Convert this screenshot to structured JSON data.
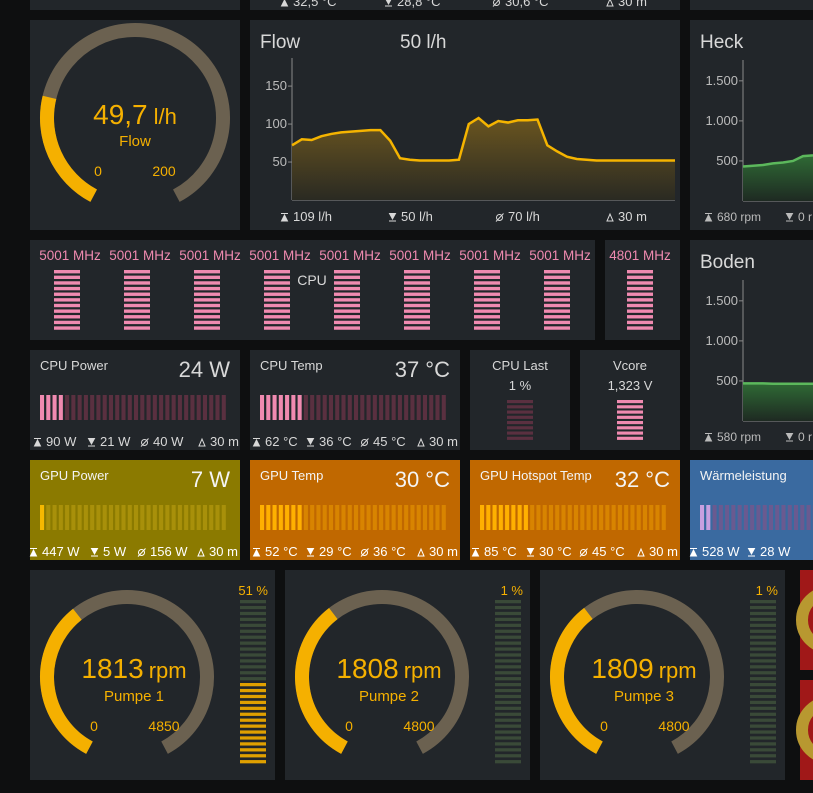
{
  "top_strip": {
    "stats": [
      "32,5 °C",
      "28,8 °C",
      "30,6 °C",
      "30 m"
    ]
  },
  "flow_gauge": {
    "value": {
      "value": 49.7,
      "label": "49,7"
    },
    "unit": "l/h",
    "label": "Flow",
    "min": 0,
    "max": 200
  },
  "flow_chart": {
    "type": "line",
    "title": "Flow",
    "current": "50 l/h",
    "color": "#f5b400",
    "values": [
      72,
      80,
      79,
      84,
      87,
      89,
      90,
      91,
      92,
      92,
      78,
      55,
      53,
      52,
      52,
      52,
      52,
      53,
      100,
      108,
      97,
      104,
      102,
      105,
      105,
      106,
      72,
      64,
      57,
      54,
      53,
      52,
      52,
      52,
      52,
      52,
      52,
      52,
      52,
      52
    ],
    "ylim": [
      0,
      187
    ],
    "yticks": [
      50,
      100,
      150
    ],
    "stats": [
      "109 l/h",
      "50 l/h",
      "70 l/h",
      "30 m"
    ]
  },
  "heck_chart": {
    "type": "area",
    "title": "Heck",
    "color": "#5cb85c",
    "values": [
      430,
      440,
      450,
      470,
      480,
      500,
      560,
      570
    ],
    "ylim": [
      0,
      1760
    ],
    "yticks": [
      500,
      {
        "value": 1000,
        "label": "1.000"
      },
      {
        "value": 1500,
        "label": "1.500"
      }
    ],
    "stats": [
      "680 rpm",
      "0 r"
    ]
  },
  "boden_chart": {
    "type": "area",
    "title": "Boden",
    "color": "#5cb85c",
    "values": [
      470,
      470,
      470,
      465,
      465,
      465,
      465,
      465
    ],
    "ylim": [
      0,
      1760
    ],
    "yticks": [
      500,
      {
        "value": 1000,
        "label": "1.000"
      },
      {
        "value": 1500,
        "label": "1.500"
      }
    ],
    "stats": [
      "580 rpm",
      "0 r"
    ]
  },
  "cpu_clocks": {
    "label": "CPU",
    "cores": [
      "5001 MHz",
      "5001 MHz",
      "5001 MHz",
      "5001 MHz",
      "5001 MHz",
      "5001 MHz",
      "5001 MHz",
      "5001 MHz"
    ],
    "extra": "4801 MHz"
  },
  "sensors": [
    {
      "title": "CPU Power",
      "value": "24 W",
      "stats": [
        "90 W",
        "21 W",
        "40 W",
        "30 m"
      ]
    },
    {
      "title": "CPU Temp",
      "value": "37 °C",
      "stats": [
        "62 °C",
        "36 °C",
        "45 °C",
        "30 m"
      ]
    },
    {
      "title": "GPU Power",
      "value": "7 W",
      "stats": [
        "447 W",
        "5 W",
        "156 W",
        "30 m"
      ]
    },
    {
      "title": "GPU Temp",
      "value": "30 °C",
      "stats": [
        "52 °C",
        "29 °C",
        "36 °C",
        "30 m"
      ]
    },
    {
      "title": "GPU Hotspot Temp",
      "value": "32 °C",
      "stats": [
        "85 °C",
        "30 °C",
        "45 °C",
        "30 m"
      ]
    },
    {
      "title": "Wärmeleistung",
      "stats": [
        "528 W",
        "28 W"
      ]
    }
  ],
  "cpu_last": {
    "title": "CPU Last",
    "value": {
      "value": 1,
      "label": "1 %"
    }
  },
  "vcore": {
    "title": "Vcore",
    "value": "1,323 V"
  },
  "pumps": [
    {
      "value": 1813,
      "unit": "rpm",
      "label": "Pumpe 1",
      "min": 0,
      "max": 4850,
      "percent": {
        "value": 51,
        "label": "51 %"
      }
    },
    {
      "value": 1808,
      "unit": "rpm",
      "label": "Pumpe 2",
      "min": 0,
      "max": 4800,
      "percent": {
        "value": 1,
        "label": "1 %"
      }
    },
    {
      "value": 1809,
      "unit": "rpm",
      "label": "Pumpe 3",
      "min": 0,
      "max": 4800,
      "percent": {
        "value": 1,
        "label": "1 %"
      }
    }
  ]
}
